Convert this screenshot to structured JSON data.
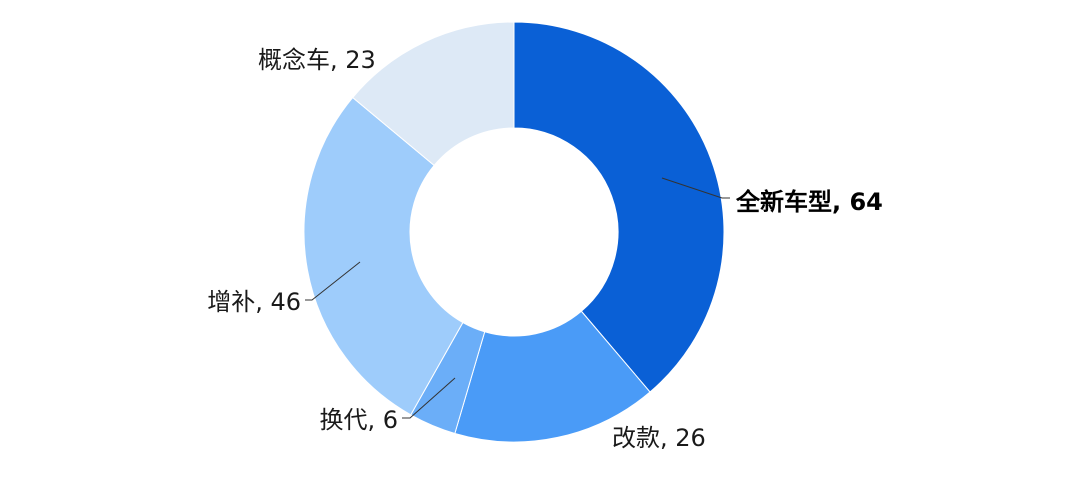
{
  "chart_data": {
    "type": "pie",
    "donut": true,
    "slices": [
      {
        "label": "全新车型",
        "value": 64,
        "display": "全新车型, 64",
        "color": "#0A60D6",
        "bold": true
      },
      {
        "label": "改款",
        "value": 26,
        "display": "改款, 26",
        "color": "#4A9BF7",
        "bold": false
      },
      {
        "label": "换代",
        "value": 6,
        "display": "换代, 6",
        "color": "#6BAEF8",
        "bold": false
      },
      {
        "label": "增补",
        "value": 46,
        "display": "增补, 46",
        "color": "#9ECCFB",
        "bold": false
      },
      {
        "label": "概念车",
        "value": 23,
        "display": "概念车, 23",
        "color": "#DDE9F6",
        "bold": false
      }
    ]
  }
}
